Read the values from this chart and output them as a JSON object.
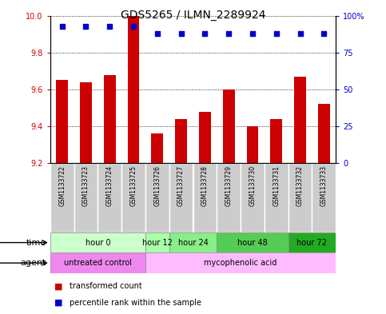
{
  "title": "GDS5265 / ILMN_2289924",
  "samples": [
    "GSM1133722",
    "GSM1133723",
    "GSM1133724",
    "GSM1133725",
    "GSM1133726",
    "GSM1133727",
    "GSM1133728",
    "GSM1133729",
    "GSM1133730",
    "GSM1133731",
    "GSM1133732",
    "GSM1133733"
  ],
  "bar_values": [
    9.65,
    9.64,
    9.68,
    10.0,
    9.36,
    9.44,
    9.48,
    9.6,
    9.4,
    9.44,
    9.67,
    9.52
  ],
  "percentile_values": [
    93,
    93,
    93,
    93,
    88,
    88,
    88,
    88,
    88,
    88,
    88,
    88
  ],
  "ymin": 9.2,
  "ymax": 10.0,
  "yticks": [
    9.2,
    9.4,
    9.6,
    9.8,
    10.0
  ],
  "y2min": 0,
  "y2max": 100,
  "y2ticks": [
    0,
    25,
    50,
    75,
    100
  ],
  "bar_color": "#cc0000",
  "percentile_color": "#0000cc",
  "bar_width": 0.5,
  "time_groups": [
    {
      "label": "hour 0",
      "start": 0,
      "end": 4,
      "color": "#ccffcc"
    },
    {
      "label": "hour 12",
      "start": 4,
      "end": 5,
      "color": "#aaffaa"
    },
    {
      "label": "hour 24",
      "start": 5,
      "end": 7,
      "color": "#88ee88"
    },
    {
      "label": "hour 48",
      "start": 7,
      "end": 10,
      "color": "#55cc55"
    },
    {
      "label": "hour 72",
      "start": 10,
      "end": 12,
      "color": "#22aa22"
    }
  ],
  "agent_groups": [
    {
      "label": "untreated control",
      "start": 0,
      "end": 4,
      "color": "#ee88ee"
    },
    {
      "label": "mycophenolic acid",
      "start": 4,
      "end": 12,
      "color": "#ffbbff"
    }
  ],
  "legend_red": "transformed count",
  "legend_blue": "percentile rank within the sample",
  "tick_color_left": "#cc0000",
  "tick_color_right": "#0000cc",
  "bg_color": "#ffffff",
  "sample_box_color": "#cccccc",
  "time_label": "time",
  "agent_label": "agent"
}
